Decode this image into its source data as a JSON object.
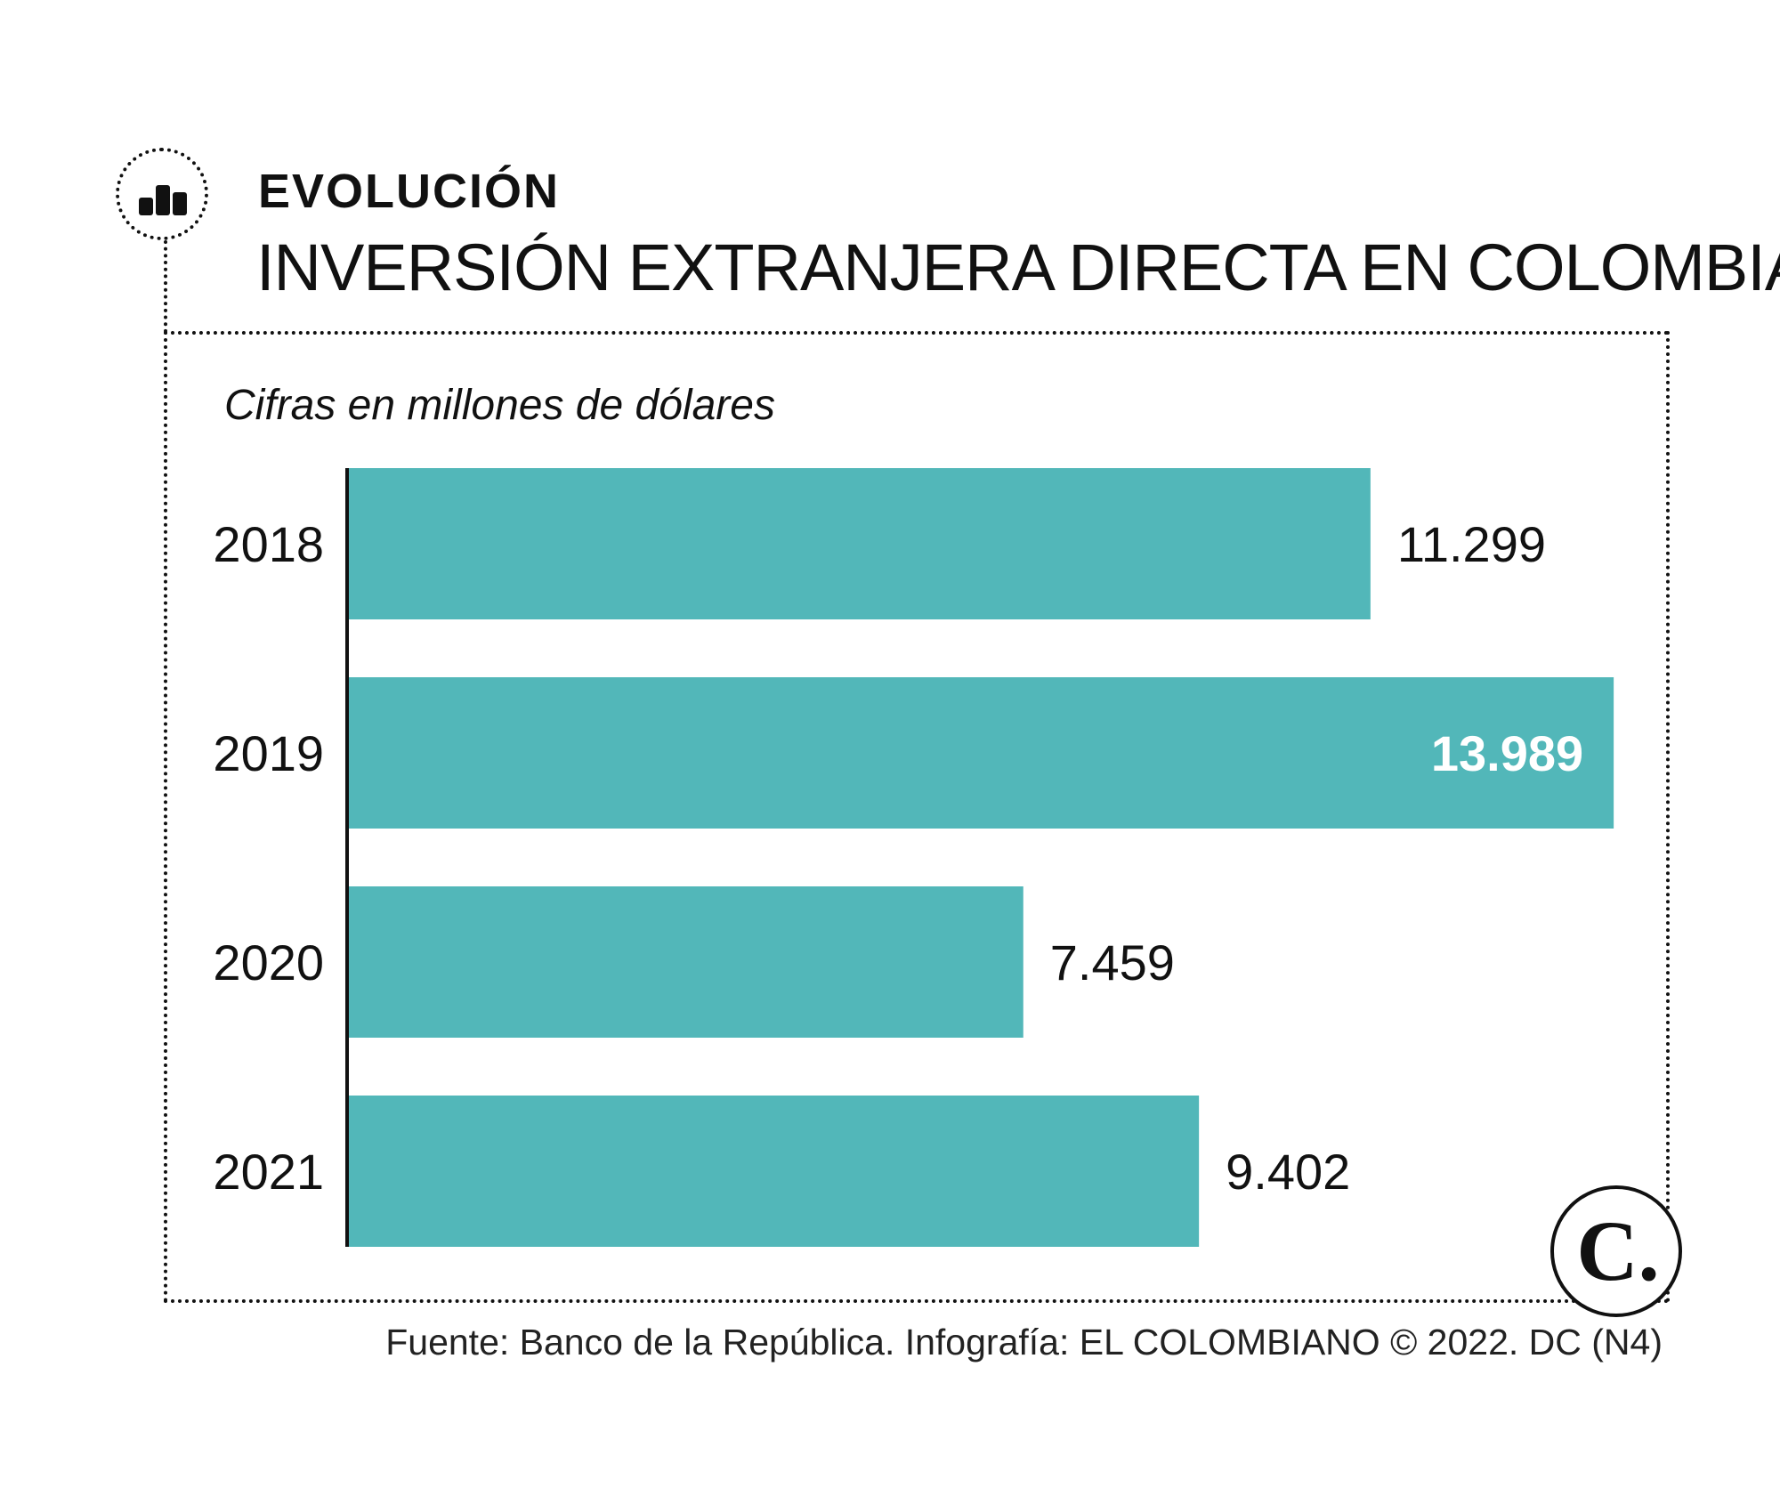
{
  "header": {
    "kicker": "EVOLUCIÓN",
    "title": "INVERSIÓN EXTRANJERA DIRECTA EN COLOMBIA"
  },
  "icons": {
    "header_icon": "bar-chart-icon",
    "brand_logo": "el-colombiano-logo"
  },
  "logo": {
    "text": "C."
  },
  "colors": {
    "bar": "#52b7b9",
    "text": "#111111",
    "highlight_label": "#ffffff"
  },
  "chart_data": {
    "type": "bar",
    "orientation": "horizontal",
    "title": "INVERSIÓN EXTRANJERA DIRECTA EN COLOMBIA",
    "ylabel": "",
    "xlabel": "",
    "units_note": "Cifras en millones de dólares",
    "categories": [
      "2018",
      "2019",
      "2020",
      "2021"
    ],
    "values": [
      11299,
      13989,
      7459,
      9402
    ],
    "value_labels": [
      "11.299",
      "13.989",
      "7.459",
      "9.402"
    ],
    "highlight_index": 1,
    "xlim": [
      0,
      14470
    ],
    "grid": false,
    "legend": "none"
  },
  "footer": {
    "source": "Fuente: Banco de la República. Infografía: EL COLOMBIANO © 2022. DC (N4)"
  }
}
